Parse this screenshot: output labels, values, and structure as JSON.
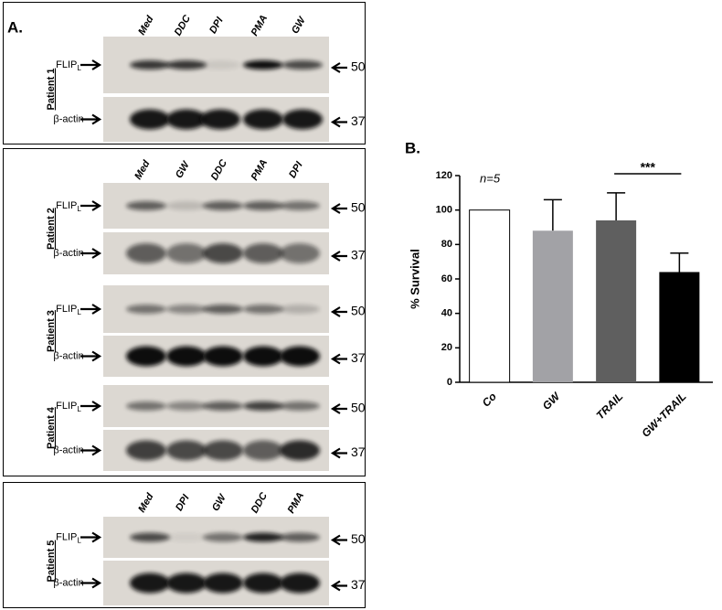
{
  "panel_a": {
    "label": "A.",
    "blots": [
      {
        "lanes": [
          "Med",
          "DDC",
          "DPI",
          "PMA",
          "GW"
        ],
        "patients": [
          {
            "name": "Patient 1",
            "rows": [
              {
                "label": "FLIP",
                "sub": "L",
                "kda": 50
              },
              {
                "label": "β-actin",
                "kda": 37
              }
            ]
          }
        ]
      },
      {
        "lanes": [
          "Med",
          "GW",
          "DDC",
          "PMA",
          "DPI"
        ],
        "patients": [
          {
            "name": "Patient 2",
            "rows": [
              {
                "label": "FLIP",
                "sub": "L",
                "kda": 50
              },
              {
                "label": "β-actin",
                "kda": 37
              }
            ]
          },
          {
            "name": "Patient 3",
            "rows": [
              {
                "label": "FLIP",
                "sub": "L",
                "kda": 50
              },
              {
                "label": "β-actin",
                "kda": 37
              }
            ]
          },
          {
            "name": "Patient 4",
            "rows": [
              {
                "label": "FLIP",
                "sub": "L",
                "kda": 50
              },
              {
                "label": "β-actin",
                "kda": 37
              }
            ]
          }
        ]
      },
      {
        "lanes": [
          "Med",
          "DPI",
          "GW",
          "DDC",
          "PMA"
        ],
        "patients": [
          {
            "name": "Patient 5",
            "rows": [
              {
                "label": "FLIP",
                "sub": "L",
                "kda": 50
              },
              {
                "label": "β-actin",
                "kda": 37
              }
            ]
          }
        ]
      }
    ]
  },
  "chart_data": {
    "type": "bar",
    "panel_label": "B.",
    "y_label": "% Survival",
    "categories": [
      "Co",
      "GW",
      "TRAIL",
      "GW+TRAIL"
    ],
    "values": [
      100,
      88,
      94,
      64
    ],
    "errors": [
      0,
      18,
      16,
      11
    ],
    "colors": [
      "#ffffff",
      "#a2a2a6",
      "#5f5f5f",
      "#000000"
    ],
    "ylim": [
      0,
      120
    ],
    "yticks": [
      0,
      20,
      40,
      60,
      80,
      100,
      120
    ],
    "annotation": "n=5",
    "significance": "***"
  }
}
